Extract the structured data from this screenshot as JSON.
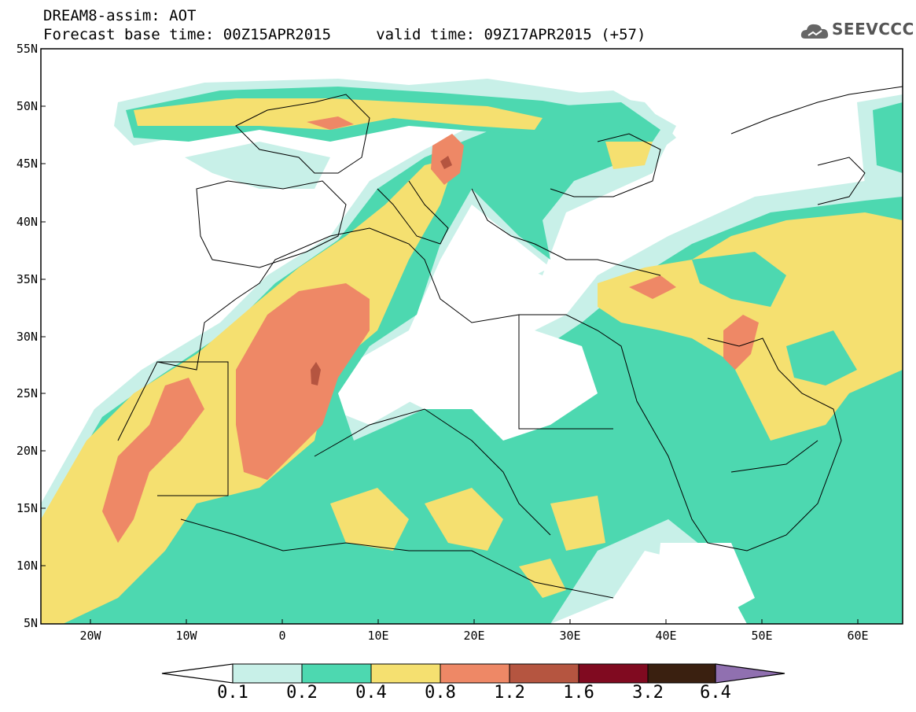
{
  "header": {
    "title_line1": "DREAM8-assim: AOT",
    "title_line2": "Forecast base time: 00Z15APR2015     valid time: 09Z17APR2015 (+57)",
    "logo_text": "SEEVCCC"
  },
  "axes": {
    "lat_labels": [
      "55N",
      "50N",
      "45N",
      "40N",
      "35N",
      "30N",
      "25N",
      "20N",
      "15N",
      "10N",
      "5N"
    ],
    "lon_labels": [
      "20W",
      "10W",
      "0",
      "10E",
      "20E",
      "30E",
      "40E",
      "50E",
      "60E"
    ]
  },
  "colorbar": {
    "levels": [
      "0.1",
      "0.2",
      "0.4",
      "0.8",
      "1.2",
      "1.6",
      "3.2",
      "6.4"
    ],
    "colors": [
      "#c8f0e8",
      "#4dd8b0",
      "#f5e070",
      "#ee8866",
      "#b55540",
      "#800a20",
      "#3a2010",
      "#9070b0"
    ]
  },
  "palette": {
    "very_light": "#c8f0e8",
    "light": "#4dd8b0",
    "medium": "#f5e070",
    "high": "#ee8866",
    "very_high": "#b55540"
  }
}
